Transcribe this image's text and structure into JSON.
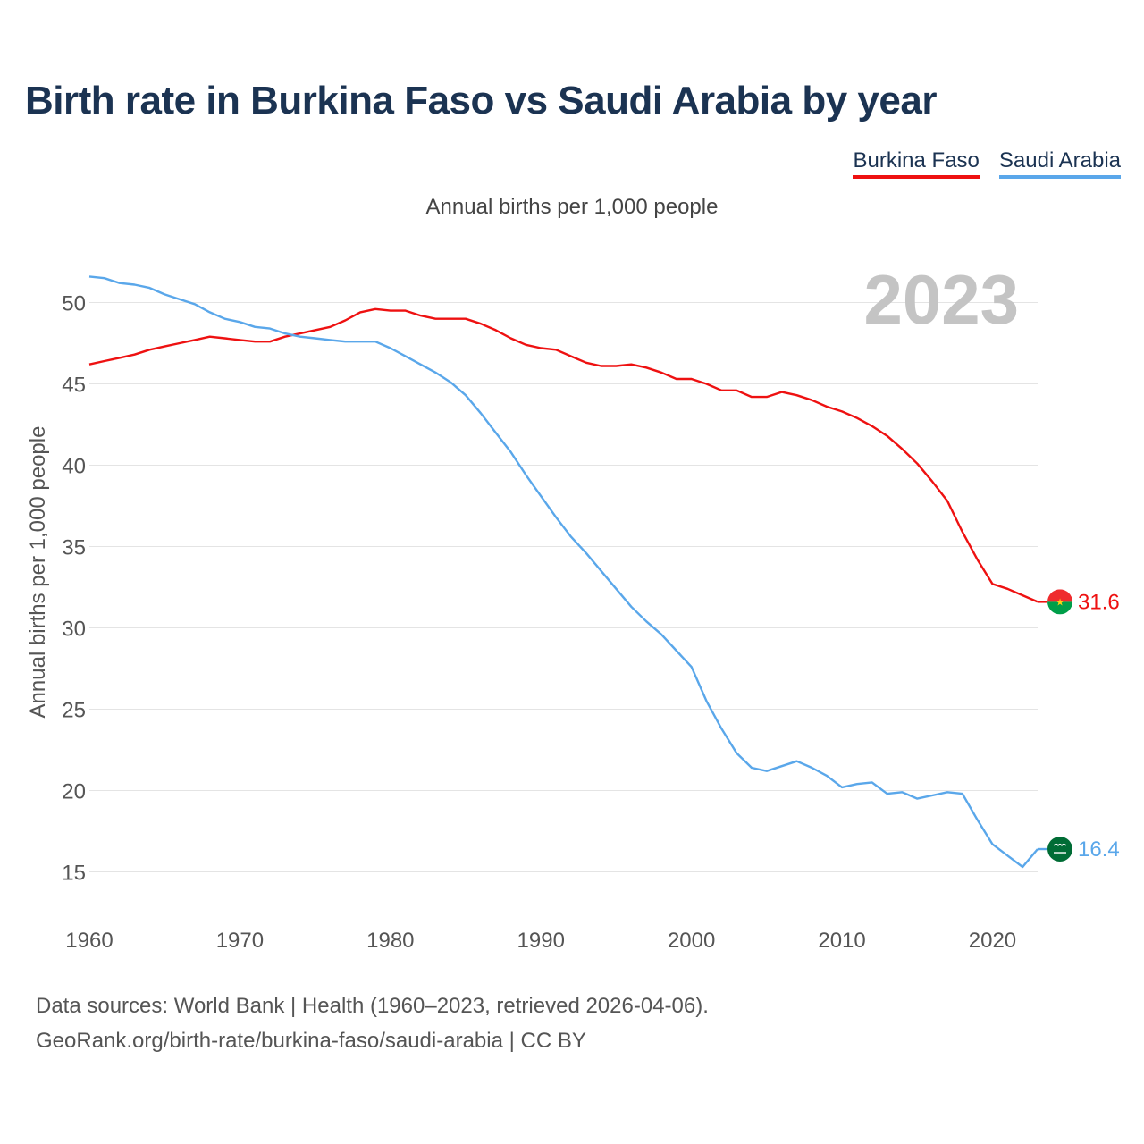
{
  "chart_data": {
    "type": "line",
    "title": "Birth rate in Burkina Faso vs Saudi Arabia by year",
    "subtitle": "Annual births per 1,000 people",
    "ylabel": "Annual births per 1,000 people",
    "xlabel": "",
    "year_label": "2023",
    "xlim": [
      1960,
      2023
    ],
    "ylim": [
      12.5,
      52
    ],
    "x_ticks": [
      1960,
      1970,
      1980,
      1990,
      2000,
      2010,
      2020
    ],
    "y_ticks": [
      15,
      20,
      25,
      30,
      35,
      40,
      45,
      50
    ],
    "x": [
      1960,
      1961,
      1962,
      1963,
      1964,
      1965,
      1966,
      1967,
      1968,
      1969,
      1970,
      1971,
      1972,
      1973,
      1974,
      1975,
      1976,
      1977,
      1978,
      1979,
      1980,
      1981,
      1982,
      1983,
      1984,
      1985,
      1986,
      1987,
      1988,
      1989,
      1990,
      1991,
      1992,
      1993,
      1994,
      1995,
      1996,
      1997,
      1998,
      1999,
      2000,
      2001,
      2002,
      2003,
      2004,
      2005,
      2006,
      2007,
      2008,
      2009,
      2010,
      2011,
      2012,
      2013,
      2014,
      2015,
      2016,
      2017,
      2018,
      2019,
      2020,
      2021,
      2022,
      2023
    ],
    "series": [
      {
        "name": "Burkina Faso",
        "color": "#ee1111",
        "end_label": "31.6",
        "values": [
          46.2,
          46.4,
          46.6,
          46.8,
          47.1,
          47.3,
          47.5,
          47.7,
          47.9,
          47.8,
          47.7,
          47.6,
          47.6,
          47.9,
          48.1,
          48.3,
          48.5,
          48.9,
          49.4,
          49.6,
          49.5,
          49.5,
          49.2,
          49.0,
          49.0,
          49.0,
          48.7,
          48.3,
          47.8,
          47.4,
          47.2,
          47.1,
          46.7,
          46.3,
          46.1,
          46.1,
          46.2,
          46.0,
          45.7,
          45.3,
          45.3,
          45.0,
          44.6,
          44.6,
          44.2,
          44.2,
          44.5,
          44.3,
          44.0,
          43.6,
          43.3,
          42.9,
          42.4,
          41.8,
          41.0,
          40.1,
          39.0,
          37.8,
          35.9,
          34.2,
          32.7,
          32.4,
          32.0,
          31.6
        ]
      },
      {
        "name": "Saudi Arabia",
        "color": "#5aa7ea",
        "end_label": "16.4",
        "values": [
          51.6,
          51.5,
          51.2,
          51.1,
          50.9,
          50.5,
          50.2,
          49.9,
          49.4,
          49.0,
          48.8,
          48.5,
          48.4,
          48.1,
          47.9,
          47.8,
          47.7,
          47.6,
          47.6,
          47.6,
          47.2,
          46.7,
          46.2,
          45.7,
          45.1,
          44.3,
          43.2,
          42.0,
          40.8,
          39.4,
          38.1,
          36.8,
          35.6,
          34.6,
          33.5,
          32.4,
          31.3,
          30.4,
          29.6,
          28.6,
          27.6,
          25.5,
          23.8,
          22.3,
          21.4,
          21.2,
          21.5,
          21.8,
          21.4,
          20.9,
          20.2,
          20.4,
          20.5,
          19.8,
          19.9,
          19.5,
          19.7,
          19.9,
          19.8,
          18.2,
          16.7,
          16.0,
          15.3,
          16.4
        ]
      }
    ]
  },
  "legend": {
    "items": [
      "Burkina Faso",
      "Saudi Arabia"
    ]
  },
  "footer": {
    "line1": "Data sources: World Bank | Health (1960–2023, retrieved 2026-04-06).",
    "line2": "GeoRank.org/birth-rate/burkina-faso/saudi-arabia | CC BY"
  },
  "colors": {
    "title": "#1b3352",
    "grid": "#e4e4e4",
    "axis_text": "#555555",
    "year_watermark": "#c4c4c4",
    "burkina_red": "#ef2b2d",
    "burkina_green": "#009e49",
    "burkina_star": "#fcd116",
    "saudi_green": "#006c35"
  }
}
